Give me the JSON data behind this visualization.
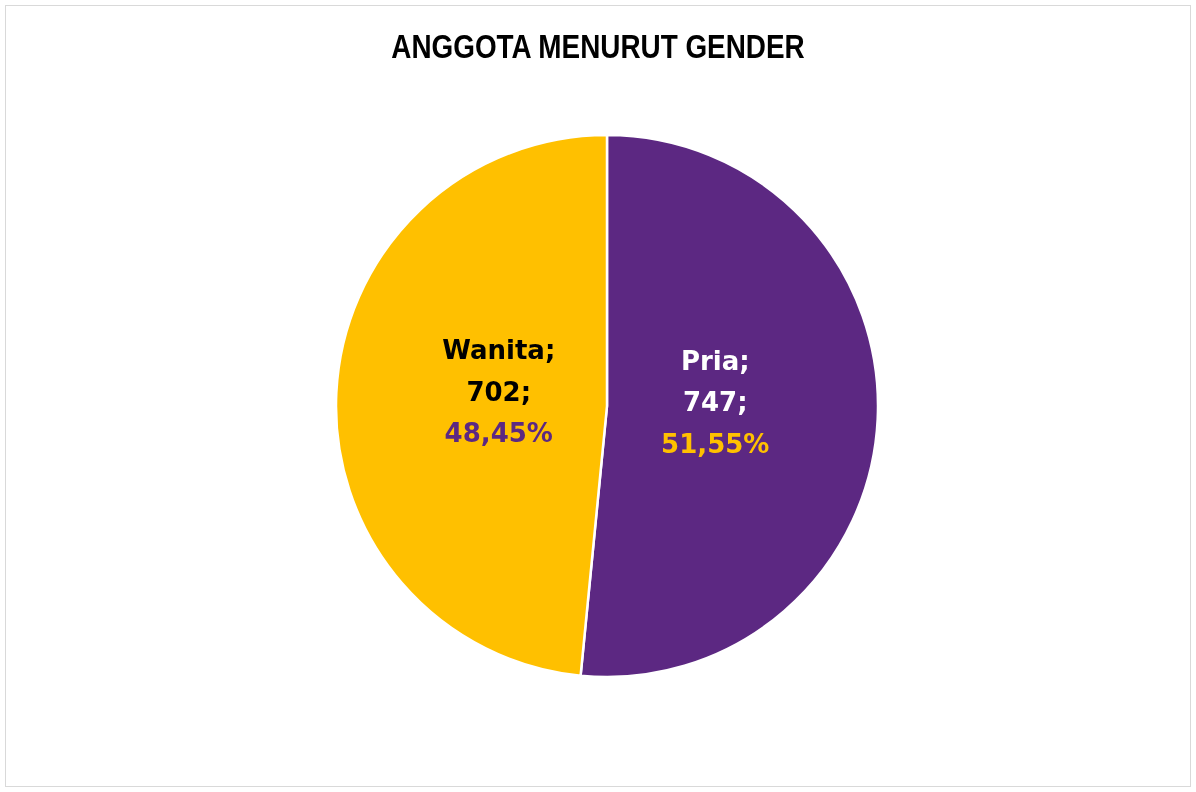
{
  "chart_data": {
    "type": "pie",
    "title": "ANGGOTA MENURUT GENDER",
    "categories": [
      "Pria",
      "Wanita"
    ],
    "values": [
      747,
      702
    ],
    "colors": [
      "#5c2882",
      "#ffc000"
    ],
    "value_labels": [
      ";\n747;\n51,55%",
      ";\n702;\n48,45%"
    ]
  }
}
